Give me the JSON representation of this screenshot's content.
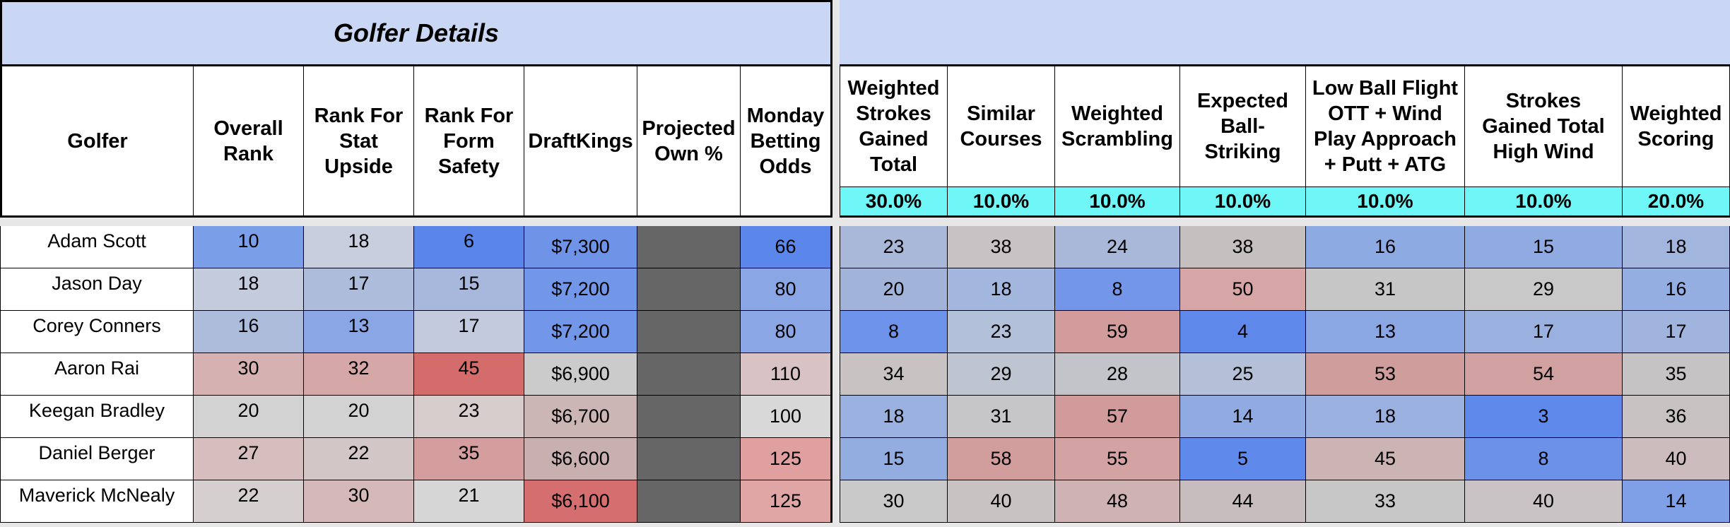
{
  "left_title": "Golfer Details",
  "left_headers": [
    "Golfer",
    "Overall Rank",
    "Rank For Stat Upside",
    "Rank For Form Safety",
    "DraftKings",
    "Projected Own %",
    "Monday Betting Odds"
  ],
  "right_headers": [
    "Weighted Strokes Gained Total",
    "Similar Courses",
    "Weighted Scrambling",
    "Expected Ball-Striking",
    "Low Ball Flight OTT + Wind Play Approach + Putt + ATG",
    "Strokes Gained Total High Wind",
    "Weighted Scoring"
  ],
  "weights": [
    "30.0%",
    "10.0%",
    "10.0%",
    "10.0%",
    "10.0%",
    "10.0%",
    "20.0%"
  ],
  "rows": [
    {
      "golfer": "Adam Scott",
      "overall": "10",
      "stat_upside": "18",
      "form_safety": "6",
      "draftkings": "$7,300",
      "own": "",
      "odds": "66",
      "stats": [
        "23",
        "38",
        "24",
        "38",
        "16",
        "15",
        "18"
      ]
    },
    {
      "golfer": "Jason Day",
      "overall": "18",
      "stat_upside": "17",
      "form_safety": "15",
      "draftkings": "$7,200",
      "own": "",
      "odds": "80",
      "stats": [
        "20",
        "18",
        "8",
        "50",
        "31",
        "29",
        "16"
      ]
    },
    {
      "golfer": "Corey Conners",
      "overall": "16",
      "stat_upside": "13",
      "form_safety": "17",
      "draftkings": "$7,200",
      "own": "",
      "odds": "80",
      "stats": [
        "8",
        "23",
        "59",
        "4",
        "13",
        "17",
        "17"
      ]
    },
    {
      "golfer": "Aaron Rai",
      "overall": "30",
      "stat_upside": "32",
      "form_safety": "45",
      "draftkings": "$6,900",
      "own": "",
      "odds": "110",
      "stats": [
        "34",
        "29",
        "28",
        "25",
        "53",
        "54",
        "35"
      ]
    },
    {
      "golfer": "Keegan Bradley",
      "overall": "20",
      "stat_upside": "20",
      "form_safety": "23",
      "draftkings": "$6,700",
      "own": "",
      "odds": "100",
      "stats": [
        "18",
        "31",
        "57",
        "14",
        "18",
        "3",
        "36"
      ]
    },
    {
      "golfer": "Daniel Berger",
      "overall": "27",
      "stat_upside": "22",
      "form_safety": "35",
      "draftkings": "$6,600",
      "own": "",
      "odds": "125",
      "stats": [
        "15",
        "58",
        "55",
        "5",
        "45",
        "8",
        "40"
      ]
    },
    {
      "golfer": "Maverick McNealy",
      "overall": "22",
      "stat_upside": "30",
      "form_safety": "21",
      "draftkings": "$6,100",
      "own": "",
      "odds": "125",
      "stats": [
        "30",
        "40",
        "48",
        "44",
        "33",
        "40",
        "14"
      ]
    }
  ],
  "colors": {
    "header_fill": "#c9d6f4",
    "weight_fill": "#6ff7f7",
    "own_fill": "#666666",
    "rows": [
      [
        "#7a9ee8",
        "#c8cedd",
        "#5a86ea",
        "#6f93e6",
        "#5b87ea",
        "#a9b7d8",
        "#c7c2c3",
        "#a9b7d8",
        "#c6bfbf",
        "#8eaae2",
        "#8fabe2",
        "#a2b5dc"
      ],
      [
        "#c4cbdc",
        "#aebcdb",
        "#a8b7dc",
        "#7397e8",
        "#8aa6e4",
        "#a2b3da",
        "#a3b6dd",
        "#7396e8",
        "#d6a5a5",
        "#c6c6c6",
        "#c8c8c9",
        "#94aee2"
      ],
      [
        "#adbcdb",
        "#8aa6e4",
        "#c4cadd",
        "#7397e8",
        "#8aa6e4",
        "#6d92e9",
        "#b3c0da",
        "#d39c9c",
        "#5e88ea",
        "#8aa7e3",
        "#9ab1df",
        "#a0b4dd"
      ],
      [
        "#d6b1b2",
        "#d6a7a7",
        "#d46c6c",
        "#cbcbcb",
        "#d9c2c3",
        "#c8c2c2",
        "#bec4d0",
        "#c2c4c9",
        "#b4c0d8",
        "#d09d9d",
        "#d1a0a0",
        "#c6c3c5"
      ],
      [
        "#d2d2d2",
        "#d2d2d2",
        "#d7cdcd",
        "#ccb5b5",
        "#d8d8d8",
        "#9ab1df",
        "#c6c6c8",
        "#d29b9b",
        "#90abe2",
        "#9ab1df",
        "#5e88ea",
        "#c8c1c2"
      ],
      [
        "#d6bdbe",
        "#d2c6c7",
        "#d59e9e",
        "#c8b0b1",
        "#e0a0a0",
        "#93ade1",
        "#d29d9d",
        "#d3a3a3",
        "#5f89ea",
        "#ccb3b4",
        "#6b91e9",
        "#ccbcbd"
      ],
      [
        "#d5cfcf",
        "#d5b9ba",
        "#d6d6d6",
        "#d56f6f",
        "#e0a5a5",
        "#c9c9c9",
        "#c9c2c3",
        "#cfb3b4",
        "#c7bdbe",
        "#c7c7c7",
        "#c9c3c5",
        "#7f9fe6"
      ]
    ]
  }
}
